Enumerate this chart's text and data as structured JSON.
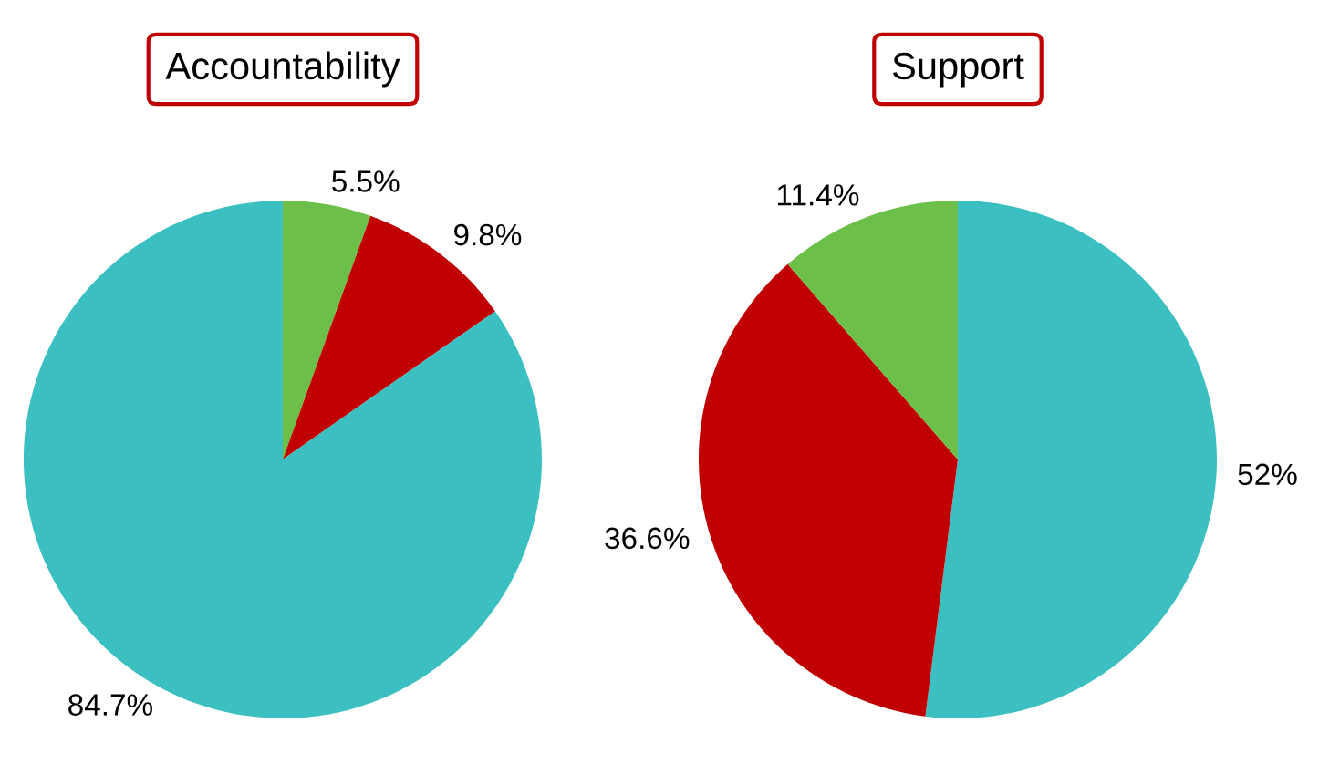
{
  "chart_data": [
    {
      "type": "pie",
      "title": "Accountability",
      "categories": [
        null,
        null,
        null
      ],
      "values": [
        5.5,
        9.8,
        84.7
      ],
      "colors": [
        "#6cc04a",
        "#c00000",
        "#3bbfc1"
      ],
      "value_labels": [
        "5.5%",
        "9.8%",
        "84.7%"
      ]
    },
    {
      "type": "pie",
      "title": "Support",
      "categories": [
        null,
        null,
        null
      ],
      "values": [
        52,
        36.6,
        11.4
      ],
      "colors": [
        "#3bbfc1",
        "#c00000",
        "#6cc04a"
      ],
      "value_labels": [
        "52%",
        "36.6%",
        "11.4%"
      ]
    }
  ]
}
